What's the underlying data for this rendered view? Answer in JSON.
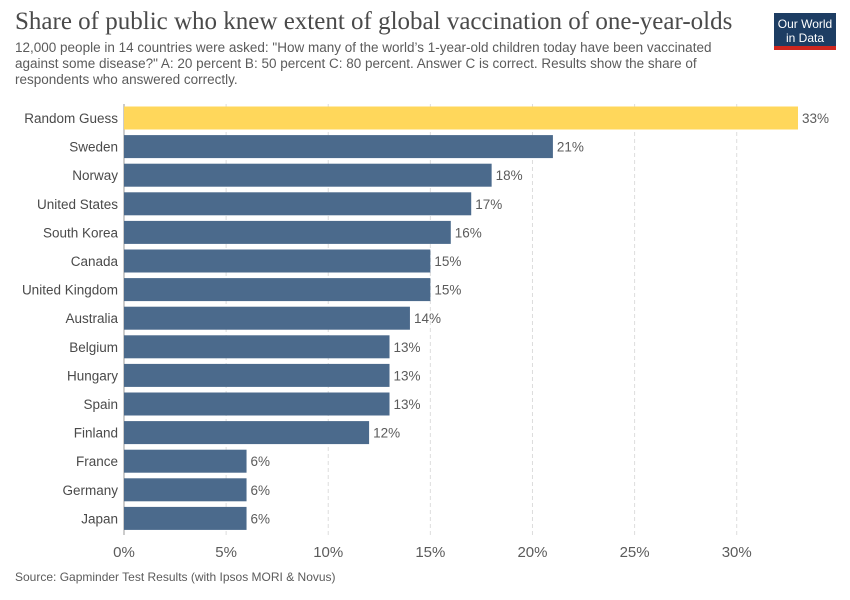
{
  "header": {
    "title": "Share of public who knew extent of global vaccination of one-year-olds",
    "subtitle": "12,000 people in 14 countries were asked: \"How many of the world’s 1-year-old children today have been vaccinated against some disease?\" A: 20 percent B: 50 percent C: 80 percent. Answer C is correct. Results show the share of respondents who answered correctly.",
    "logo_line1": "Our World",
    "logo_line2": "in Data"
  },
  "footer": {
    "source": "Source: Gapminder Test Results (with Ipsos MORI & Novus)"
  },
  "colors": {
    "highlight": "#ffd75b",
    "bar": "#4b6a8c",
    "grid": "#dddddd",
    "axis_text": "#5b5b5b",
    "label_text": "#4a4a4a",
    "logo_bg": "#1d3d63",
    "logo_accent": "#ce261e"
  },
  "chart_data": {
    "type": "bar",
    "orientation": "horizontal",
    "categories": [
      "Random Guess",
      "Sweden",
      "Norway",
      "United States",
      "South Korea",
      "Canada",
      "United Kingdom",
      "Australia",
      "Belgium",
      "Hungary",
      "Spain",
      "Finland",
      "France",
      "Germany",
      "Japan"
    ],
    "values": [
      33,
      21,
      18,
      17,
      16,
      15,
      15,
      14,
      13,
      13,
      13,
      12,
      6,
      6,
      6
    ],
    "value_labels": [
      "33%",
      "21%",
      "18%",
      "17%",
      "16%",
      "15%",
      "15%",
      "14%",
      "13%",
      "13%",
      "13%",
      "12%",
      "6%",
      "6%",
      "6%"
    ],
    "highlighted_category": "Random Guess",
    "xlim": [
      0,
      33
    ],
    "x_ticks": [
      0,
      5,
      10,
      15,
      20,
      25,
      30
    ],
    "x_tick_labels": [
      "0%",
      "5%",
      "10%",
      "15%",
      "20%",
      "25%",
      "30%"
    ],
    "grid": "vertical dashed",
    "legend": "none"
  }
}
